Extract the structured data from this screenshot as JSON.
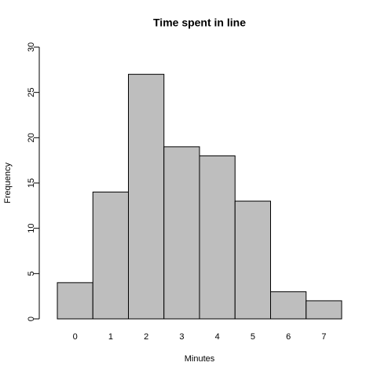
{
  "chart_data": {
    "type": "bar",
    "title": "Time spent in line",
    "xlabel": "Minutes",
    "ylabel": "Frequency",
    "categories": [
      "0",
      "1",
      "2",
      "3",
      "4",
      "5",
      "6",
      "7"
    ],
    "values": [
      4,
      14,
      27,
      19,
      18,
      13,
      3,
      2
    ],
    "color": "#bebebe",
    "ylim": [
      0,
      30
    ],
    "yticks": [
      0,
      5,
      10,
      15,
      20,
      25,
      30
    ]
  }
}
